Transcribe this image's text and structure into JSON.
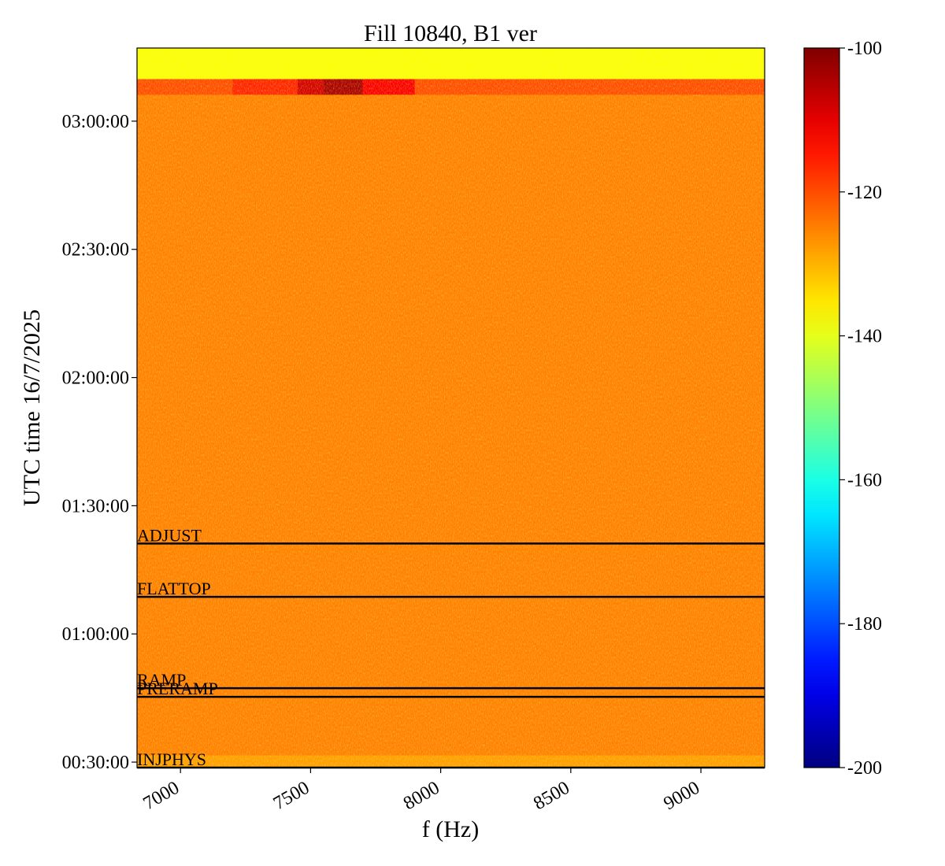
{
  "chart_data": {
    "type": "heatmap",
    "title": "Fill 10840, B1 ver",
    "xlabel": "f (Hz)",
    "ylabel": "UTC time 16/7/2025",
    "colormap": "jet",
    "xlim": [
      6833,
      9245
    ],
    "xticks": [
      7000,
      7500,
      8000,
      8500,
      9000
    ],
    "ylim": [
      1723,
      11827
    ],
    "yticks": [
      {
        "value": 1800,
        "label": "00:30:00"
      },
      {
        "value": 3600,
        "label": "01:00:00"
      },
      {
        "value": 5400,
        "label": "01:30:00"
      },
      {
        "value": 7200,
        "label": "02:00:00"
      },
      {
        "value": 9000,
        "label": "02:30:00"
      },
      {
        "value": 10800,
        "label": "03:00:00"
      }
    ],
    "x_edges": [
      6833,
      7200,
      7450,
      7550,
      7700,
      7900,
      9245
    ],
    "y_edges": [
      1723,
      1900,
      11176,
      11396,
      11827
    ],
    "z": [
      [
        -128,
        -128,
        -128,
        -128,
        -128,
        -128
      ],
      [
        -125,
        -125,
        -125,
        -125,
        -125,
        -125
      ],
      [
        -120,
        -116,
        -108,
        -104,
        -112,
        -120
      ],
      [
        -138,
        -138,
        -138,
        -138,
        -138,
        -138
      ]
    ],
    "clim": [
      -200,
      -100
    ],
    "cticks": [
      -200,
      -180,
      -160,
      -140,
      -120,
      -100
    ],
    "annotations": [
      {
        "label": "ADJUST",
        "y": 4870
      },
      {
        "label": "FLATTOP",
        "y": 4120
      },
      {
        "label": "RAMP",
        "y": 2838
      },
      {
        "label": "PRERAMP",
        "y": 2716
      },
      {
        "label": "INJPHYS",
        "y": 1723
      }
    ]
  }
}
